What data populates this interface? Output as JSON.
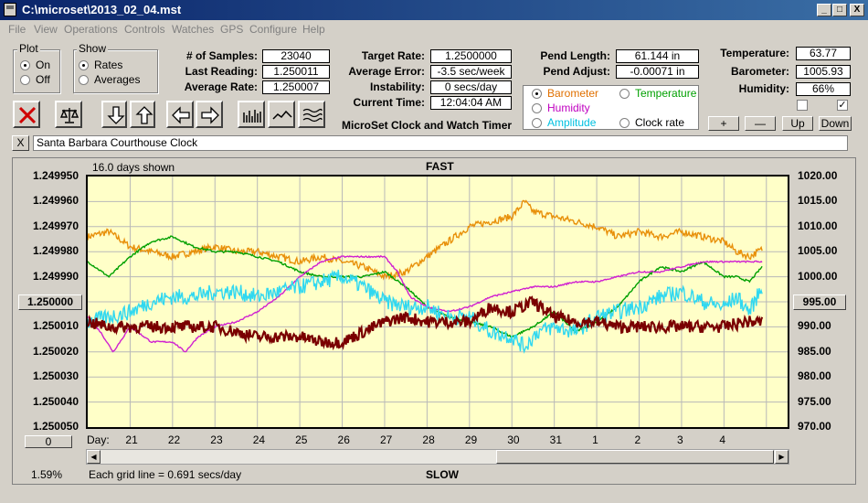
{
  "window": {
    "title": "C:\\microset\\2013_02_04.mst",
    "min": "_",
    "max": "□",
    "close": "X"
  },
  "menu": [
    "File",
    "View",
    "Operations",
    "Controls",
    "Watches",
    "GPS",
    "Configure",
    "Help"
  ],
  "plot_group": {
    "title": "Plot",
    "on": "On",
    "off": "Off",
    "selected": "On"
  },
  "show_group": {
    "title": "Show",
    "rates": "Rates",
    "averages": "Averages",
    "selected": "Rates"
  },
  "stats": {
    "samples_label": "# of Samples:",
    "samples": "23040",
    "last_label": "Last Reading:",
    "last": "1.250011",
    "avg_label": "Average Rate:",
    "avg": "1.250007",
    "target_label": "Target Rate:",
    "target": "1.2500000",
    "avg_err_label": "Average Error:",
    "avg_err": "-3.5 sec/week",
    "instab_label": "Instability:",
    "instab": "0 secs/day",
    "time_label": "Current Time:",
    "time": "12:04:04 AM",
    "pend_len_label": "Pend Length:",
    "pend_len": "61.144 in",
    "pend_adj_label": "Pend Adjust:",
    "pend_adj": "-0.00071 in",
    "temp_label": "Temperature:",
    "temp": "63.77",
    "baro_label": "Barometer:",
    "baro": "1005.93",
    "hum_label": "Humidity:",
    "hum": "66%"
  },
  "app_caption": "MicroSet Clock and Watch Timer",
  "sensor_radios": {
    "barometer": "Barometer",
    "temperature": "Temperature",
    "humidity": "Humidity",
    "amplitude": "Amplitude",
    "clock_rate": "Clock rate",
    "selected": "Barometer",
    "colors": {
      "barometer": "#e07000",
      "temperature": "#00a000",
      "humidity": "#c000c0",
      "amplitude": "#00c0e0",
      "clock_rate": "#000000"
    }
  },
  "right_buttons": {
    "plus": "+",
    "minus": "—",
    "up": "Up",
    "down": "Down"
  },
  "clock_name": "Santa Barbara Courthouse Clock",
  "clear_button": "X",
  "chart_header": {
    "days_shown": "16.0 days shown",
    "fast": "FAST",
    "slow": "SLOW",
    "grid_note": "Each grid line = 0.691 secs/day",
    "percent": "1.59%",
    "day_label": "Day:",
    "left_button": "0",
    "left_center": "1.250000",
    "right_center": "995.00"
  },
  "chart_data": {
    "type": "line",
    "x_ticks": [
      "21",
      "22",
      "23",
      "24",
      "25",
      "26",
      "27",
      "28",
      "29",
      "30",
      "31",
      "1",
      "2",
      "3",
      "4"
    ],
    "y_left_ticks": [
      "1.249950",
      "1.249960",
      "1.249970",
      "1.249980",
      "1.249990",
      "1.250000",
      "1.250010",
      "1.250020",
      "1.250030",
      "1.250040",
      "1.250050"
    ],
    "y_right_ticks": [
      "1020.00",
      "1015.00",
      "1010.00",
      "1005.00",
      "1000.00",
      "995.00",
      "990.00",
      "985.00",
      "980.00",
      "975.00",
      "970.00"
    ],
    "ylim_left": [
      1.24995,
      1.25005
    ],
    "ylim_right": [
      970,
      1020
    ],
    "grid": true,
    "series": [
      {
        "color": "#e8900a",
        "axis": "right",
        "noise": 0.7,
        "x": [
          20.0,
          20.5,
          21.0,
          21.5,
          22.0,
          22.5,
          23.0,
          23.5,
          24.0,
          24.5,
          25.0,
          25.5,
          26.0,
          26.5,
          27.0,
          27.5,
          28.0,
          28.5,
          29.0,
          29.5,
          30.0,
          30.3,
          30.5,
          31.0,
          31.5,
          32.0,
          32.5,
          33.0,
          33.5,
          34.0,
          34.5,
          35.0,
          35.3,
          35.6,
          35.9
        ],
        "y": [
          1008,
          1009,
          1006,
          1005,
          1004,
          1005,
          1006,
          1005,
          1005,
          1004,
          1003,
          1004,
          1003,
          1002,
          1000,
          1001,
          1004,
          1007,
          1010,
          1011,
          1012,
          1015,
          1013,
          1012,
          1011,
          1010,
          1008,
          1009,
          1008,
          1009,
          1008,
          1007,
          1005,
          1004,
          1005.5
        ]
      },
      {
        "color": "#00a000",
        "axis": "right",
        "noise": 0.2,
        "x": [
          20.0,
          20.5,
          21.0,
          21.5,
          22.0,
          22.5,
          23.0,
          23.5,
          24.0,
          24.5,
          25.0,
          25.5,
          26.0,
          26.5,
          27.0,
          27.5,
          28.0,
          28.5,
          29.0,
          29.5,
          30.0,
          30.5,
          31.0,
          31.5,
          32.0,
          32.5,
          33.0,
          33.5,
          34.0,
          34.5,
          35.0,
          35.3,
          35.6,
          35.9
        ],
        "y": [
          1003,
          1000,
          1004,
          1007,
          1008,
          1006,
          1005,
          1005,
          1004,
          1003,
          1001,
          1000,
          1000,
          1000,
          1001,
          998,
          994,
          992,
          991,
          990,
          988,
          990,
          993,
          989,
          991,
          994,
          999,
          1002,
          1001,
          1003,
          1000,
          1000,
          999,
          1002
        ]
      },
      {
        "color": "#d020d0",
        "axis": "right",
        "noise": 0.15,
        "x": [
          20.0,
          20.3,
          20.6,
          21.0,
          21.5,
          22.0,
          22.3,
          22.6,
          23.0,
          23.5,
          24.0,
          24.5,
          25.0,
          25.5,
          26.0,
          26.5,
          27.0,
          27.3,
          27.6,
          28.0,
          28.5,
          29.0,
          29.5,
          30.0,
          30.5,
          31.0,
          31.5,
          32.0,
          32.5,
          33.0,
          33.5,
          34.0,
          34.5,
          35.0,
          35.5,
          35.9
        ],
        "y": [
          992,
          989,
          985,
          990,
          987,
          987,
          985,
          988,
          990,
          991,
          993,
          996,
          1000,
          1003,
          1004,
          1004,
          1004,
          1001,
          996,
          994,
          993,
          994,
          996,
          997,
          998,
          998,
          999,
          999,
          1000,
          1001,
          1001,
          1002,
          1003,
          1003,
          1003,
          1003
        ]
      },
      {
        "color": "#30d8f0",
        "axis": "right",
        "noise": 1.6,
        "x": [
          20.0,
          20.5,
          21.0,
          21.5,
          22.0,
          22.5,
          23.0,
          23.5,
          24.0,
          24.5,
          25.0,
          25.5,
          26.0,
          26.5,
          27.0,
          27.5,
          28.0,
          28.5,
          29.0,
          29.5,
          30.0,
          30.3,
          30.6,
          31.0,
          31.5,
          32.0,
          32.5,
          33.0,
          33.5,
          34.0,
          34.5,
          35.0,
          35.3,
          35.6,
          35.9
        ],
        "y": [
          991,
          992,
          993,
          995,
          996,
          996,
          997,
          997,
          996,
          997,
          998,
          999,
          1000,
          998,
          995,
          994,
          994,
          992,
          992,
          989,
          988,
          986,
          989,
          990,
          989,
          992,
          993,
          994,
          996,
          997,
          995,
          994,
          996,
          993,
          998
        ]
      },
      {
        "color": "#7a0000",
        "axis": "right",
        "noise": 1.2,
        "width": 2.2,
        "x": [
          20.0,
          20.5,
          21.0,
          21.5,
          22.0,
          22.5,
          23.0,
          23.5,
          24.0,
          24.5,
          25.0,
          25.5,
          26.0,
          26.5,
          27.0,
          27.5,
          28.0,
          28.5,
          29.0,
          29.5,
          30.0,
          30.5,
          31.0,
          31.5,
          32.0,
          32.5,
          33.0,
          33.5,
          34.0,
          34.5,
          35.0,
          35.5,
          35.9
        ],
        "y": [
          991,
          990,
          990,
          990,
          990,
          990,
          990,
          989,
          988,
          988,
          988,
          987,
          987,
          989,
          991,
          992,
          991,
          991,
          991,
          994,
          993,
          995,
          992,
          991,
          991,
          990,
          990,
          990,
          990,
          990,
          990,
          991,
          991
        ]
      }
    ]
  }
}
